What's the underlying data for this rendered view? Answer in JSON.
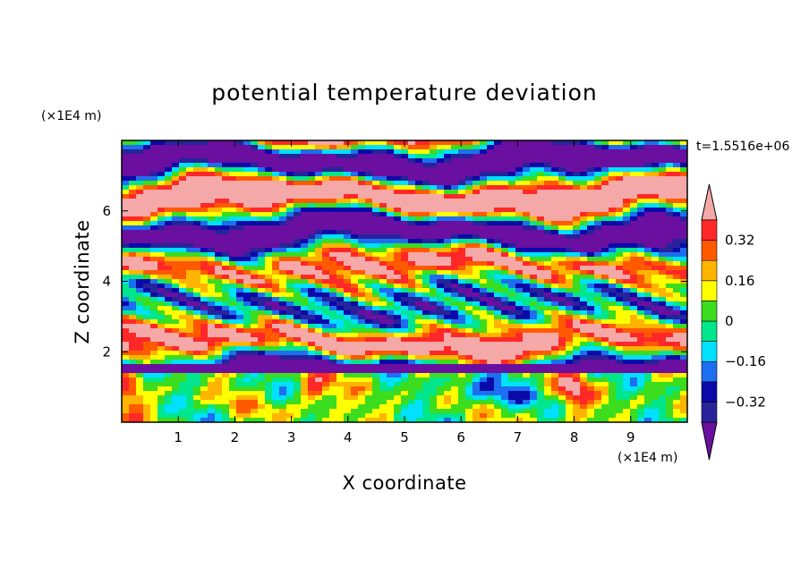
{
  "chart_data": {
    "type": "heatmap",
    "title": "potential temperature deviation",
    "xlabel": "X coordinate",
    "ylabel": "Z coordinate",
    "x_unit": "(×1E4 m)",
    "y_unit": "(×1E4 m)",
    "time_label": "t=1.5516e+06",
    "xlim": [
      0,
      10
    ],
    "ylim": [
      0,
      8
    ],
    "x_ticks": [
      "1",
      "2",
      "3",
      "4",
      "5",
      "6",
      "7",
      "8",
      "9"
    ],
    "y_ticks": [
      "2",
      "4",
      "6"
    ],
    "colorbar": {
      "labels": [
        "0.32",
        "0.16",
        "0",
        "−0.16",
        "−0.32"
      ],
      "label_values": [
        0.32,
        0.16,
        0,
        -0.16,
        -0.32
      ],
      "levels_low_to_high": [
        -0.4,
        -0.32,
        -0.24,
        -0.16,
        -0.08,
        0,
        0.08,
        0.16,
        0.24,
        0.32,
        0.4
      ],
      "colors_low_to_high": [
        "#6a0fa0",
        "#28239b",
        "#0a0aa8",
        "#1e6ef0",
        "#00e0ff",
        "#00e68c",
        "#3cdc1e",
        "#ffff00",
        "#ffb400",
        "#ff5a00",
        "#ff2828",
        "#f5a8a8"
      ],
      "extend": "both"
    },
    "grid": false
  }
}
